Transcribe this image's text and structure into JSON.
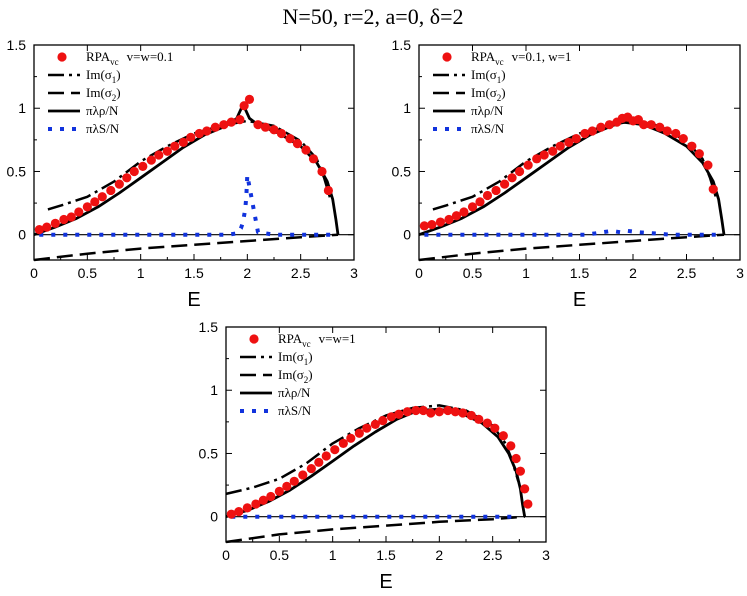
{
  "figure_title": "N=50, r=2, a=0, δ=2",
  "colors": {
    "rpa": "#ee1111",
    "im1": "#000000",
    "im2": "#000000",
    "rho": "#000000",
    "S": "#1133dd"
  },
  "chart_data": [
    {
      "type": "line",
      "panel": "top-left",
      "xlabel": "E",
      "xlim": [
        0,
        3
      ],
      "ylim": [
        -0.2,
        1.5
      ],
      "xticks": [
        "0",
        "0.5",
        "1",
        "1.5",
        "2",
        "2.5",
        "3"
      ],
      "yticks": [
        "0",
        "0.5",
        "1",
        "1.5"
      ],
      "legend": {
        "rpa": "RPA",
        "rpa_sub": "vc",
        "rpa_params": "v=w=0.1",
        "im1": "Im(σ",
        "im1_sub": "1",
        "im2": "Im(σ",
        "im2_sub": "2",
        "rho": "πλρ/N",
        "S": "πλS/N"
      },
      "series": {
        "rpa": {
          "x": [
            0.05,
            0.12,
            0.2,
            0.28,
            0.35,
            0.42,
            0.5,
            0.57,
            0.64,
            0.72,
            0.8,
            0.87,
            0.94,
            1.02,
            1.1,
            1.17,
            1.25,
            1.32,
            1.4,
            1.47,
            1.55,
            1.62,
            1.7,
            1.78,
            1.85,
            1.93,
            1.97,
            2.02,
            2.1,
            2.17,
            2.25,
            2.32,
            2.4,
            2.47,
            2.55,
            2.62,
            2.7,
            2.76
          ],
          "y": [
            0.04,
            0.06,
            0.09,
            0.12,
            0.14,
            0.18,
            0.22,
            0.26,
            0.3,
            0.35,
            0.4,
            0.45,
            0.5,
            0.54,
            0.59,
            0.63,
            0.66,
            0.7,
            0.73,
            0.77,
            0.8,
            0.82,
            0.85,
            0.87,
            0.89,
            0.91,
            1.02,
            1.07,
            0.87,
            0.85,
            0.83,
            0.8,
            0.76,
            0.72,
            0.67,
            0.6,
            0.5,
            0.35
          ]
        },
        "im1": {
          "x": [
            0.13,
            0.25,
            0.5,
            0.75,
            1.0,
            1.25,
            1.5,
            1.75,
            2.0,
            2.25,
            2.5,
            2.65,
            2.72,
            2.78
          ],
          "y": [
            0.2,
            0.23,
            0.3,
            0.42,
            0.58,
            0.7,
            0.8,
            0.86,
            0.9,
            0.86,
            0.74,
            0.6,
            0.45,
            0.28
          ]
        },
        "im2": {
          "x": [
            0.0,
            0.5,
            1.0,
            1.5,
            2.0,
            2.5,
            2.85
          ],
          "y": [
            -0.2,
            -0.15,
            -0.11,
            -0.08,
            -0.05,
            -0.02,
            0.0
          ]
        },
        "rho": {
          "x": [
            0.0,
            0.2,
            0.4,
            0.6,
            0.8,
            1.0,
            1.2,
            1.4,
            1.6,
            1.8,
            1.9,
            1.96,
            2.02,
            2.1,
            2.3,
            2.5,
            2.65,
            2.75,
            2.8,
            2.83,
            2.85
          ],
          "y": [
            0.0,
            0.06,
            0.13,
            0.22,
            0.33,
            0.45,
            0.57,
            0.69,
            0.79,
            0.86,
            0.92,
            1.03,
            0.92,
            0.87,
            0.8,
            0.7,
            0.57,
            0.42,
            0.28,
            0.12,
            0.0
          ]
        },
        "S": {
          "x": [
            0.05,
            0.2,
            0.35,
            0.5,
            0.65,
            0.8,
            0.95,
            1.1,
            1.25,
            1.4,
            1.55,
            1.7,
            1.82,
            1.9,
            1.94,
            1.96,
            1.97,
            1.98,
            1.99,
            2.0,
            2.1,
            2.25,
            2.4,
            2.55,
            2.7,
            2.85
          ],
          "y": [
            0.0,
            0.0,
            0.0,
            0.0,
            0.0,
            0.0,
            0.0,
            0.0,
            0.0,
            0.0,
            0.0,
            0.0,
            0.0,
            0.01,
            0.05,
            0.1,
            0.15,
            0.2,
            0.3,
            0.47,
            0.02,
            0.0,
            0.0,
            0.0,
            0.0,
            0.0
          ]
        }
      }
    },
    {
      "type": "line",
      "panel": "top-right",
      "xlabel": "E",
      "xlim": [
        0,
        3
      ],
      "ylim": [
        -0.2,
        1.5
      ],
      "xticks": [
        "0",
        "0.5",
        "1",
        "1.5",
        "2",
        "2.5",
        "3"
      ],
      "yticks": [
        "0",
        "0.5",
        "1",
        "1.5"
      ],
      "legend": {
        "rpa": "RPA",
        "rpa_sub": "vc",
        "rpa_params": "v=0.1, w=1",
        "im1": "Im(σ",
        "im1_sub": "1",
        "im2": "Im(σ",
        "im2_sub": "2",
        "rho": "πλρ/N",
        "S": "πλS/N"
      },
      "series": {
        "rpa": {
          "x": [
            0.05,
            0.12,
            0.2,
            0.28,
            0.35,
            0.42,
            0.5,
            0.57,
            0.64,
            0.72,
            0.8,
            0.87,
            0.94,
            1.02,
            1.1,
            1.17,
            1.25,
            1.32,
            1.4,
            1.47,
            1.55,
            1.62,
            1.7,
            1.78,
            1.85,
            1.9,
            1.95,
            2.0,
            2.05,
            2.1,
            2.17,
            2.25,
            2.32,
            2.4,
            2.47,
            2.55,
            2.62,
            2.7,
            2.75
          ],
          "y": [
            0.07,
            0.08,
            0.1,
            0.12,
            0.15,
            0.18,
            0.22,
            0.26,
            0.31,
            0.35,
            0.4,
            0.45,
            0.5,
            0.55,
            0.6,
            0.63,
            0.66,
            0.7,
            0.73,
            0.76,
            0.8,
            0.82,
            0.85,
            0.87,
            0.89,
            0.92,
            0.93,
            0.9,
            0.91,
            0.87,
            0.87,
            0.85,
            0.82,
            0.8,
            0.76,
            0.7,
            0.64,
            0.55,
            0.36
          ]
        },
        "im1": {
          "x": [
            0.13,
            0.25,
            0.5,
            0.75,
            1.0,
            1.25,
            1.5,
            1.75,
            2.0,
            2.25,
            2.5,
            2.65,
            2.72,
            2.78
          ],
          "y": [
            0.2,
            0.23,
            0.3,
            0.42,
            0.58,
            0.7,
            0.8,
            0.86,
            0.9,
            0.86,
            0.74,
            0.6,
            0.45,
            0.28
          ]
        },
        "im2": {
          "x": [
            0.0,
            0.5,
            1.0,
            1.5,
            2.0,
            2.5,
            2.85
          ],
          "y": [
            -0.2,
            -0.15,
            -0.11,
            -0.08,
            -0.05,
            -0.02,
            0.0
          ]
        },
        "rho": {
          "x": [
            0.0,
            0.2,
            0.4,
            0.6,
            0.8,
            1.0,
            1.2,
            1.4,
            1.6,
            1.8,
            1.9,
            2.0,
            2.1,
            2.3,
            2.5,
            2.65,
            2.75,
            2.8,
            2.83,
            2.85
          ],
          "y": [
            0.0,
            0.06,
            0.13,
            0.22,
            0.33,
            0.45,
            0.57,
            0.69,
            0.79,
            0.86,
            0.89,
            0.88,
            0.87,
            0.8,
            0.7,
            0.57,
            0.42,
            0.28,
            0.12,
            0.0
          ]
        },
        "S": {
          "x": [
            0.05,
            0.2,
            0.35,
            0.5,
            0.65,
            0.8,
            0.95,
            1.1,
            1.25,
            1.4,
            1.55,
            1.65,
            1.72,
            1.8,
            1.88,
            1.95,
            2.05,
            2.2,
            2.35,
            2.5,
            2.65,
            2.8
          ],
          "y": [
            0.0,
            0.0,
            0.0,
            0.0,
            0.0,
            0.0,
            0.0,
            0.0,
            0.0,
            0.0,
            0.0,
            0.01,
            0.02,
            0.03,
            0.02,
            0.03,
            0.02,
            0.01,
            0.0,
            0.0,
            0.0,
            0.0
          ]
        }
      }
    },
    {
      "type": "line",
      "panel": "bottom",
      "xlabel": "E",
      "xlim": [
        0,
        3
      ],
      "ylim": [
        -0.2,
        1.5
      ],
      "xticks": [
        "0",
        "0.5",
        "1",
        "1.5",
        "2",
        "2.5",
        "3"
      ],
      "yticks": [
        "0",
        "0.5",
        "1",
        "1.5"
      ],
      "legend": {
        "rpa": "RPA",
        "rpa_sub": "vc",
        "rpa_params": "v=w=1",
        "im1": "Im(σ",
        "im1_sub": "1",
        "im2": "Im(σ",
        "im2_sub": "2",
        "rho": "πλρ/N",
        "S": "πλS/N"
      },
      "series": {
        "rpa": {
          "x": [
            0.05,
            0.12,
            0.2,
            0.28,
            0.35,
            0.42,
            0.5,
            0.57,
            0.64,
            0.72,
            0.8,
            0.87,
            0.94,
            1.02,
            1.1,
            1.17,
            1.25,
            1.32,
            1.4,
            1.47,
            1.55,
            1.62,
            1.7,
            1.78,
            1.85,
            1.92,
            2.0,
            2.08,
            2.15,
            2.22,
            2.3,
            2.37,
            2.45,
            2.52,
            2.6,
            2.67,
            2.72,
            2.76,
            2.8,
            2.83
          ],
          "y": [
            0.02,
            0.04,
            0.07,
            0.1,
            0.13,
            0.16,
            0.2,
            0.24,
            0.28,
            0.33,
            0.38,
            0.43,
            0.48,
            0.53,
            0.58,
            0.62,
            0.66,
            0.7,
            0.73,
            0.76,
            0.79,
            0.81,
            0.83,
            0.84,
            0.84,
            0.82,
            0.83,
            0.84,
            0.83,
            0.82,
            0.8,
            0.77,
            0.74,
            0.7,
            0.64,
            0.56,
            0.46,
            0.36,
            0.22,
            0.1
          ]
        },
        "im1": {
          "x": [
            0.0,
            0.25,
            0.5,
            0.75,
            1.0,
            1.25,
            1.5,
            1.75,
            2.0,
            2.25,
            2.5,
            2.62,
            2.68,
            2.74
          ],
          "y": [
            0.18,
            0.23,
            0.3,
            0.42,
            0.58,
            0.7,
            0.8,
            0.86,
            0.88,
            0.84,
            0.72,
            0.58,
            0.45,
            0.28
          ]
        },
        "im2": {
          "x": [
            0.0,
            0.5,
            1.0,
            1.5,
            2.0,
            2.5,
            2.8
          ],
          "y": [
            -0.2,
            -0.14,
            -0.1,
            -0.07,
            -0.04,
            -0.02,
            0.0
          ]
        },
        "rho": {
          "x": [
            0.0,
            0.2,
            0.4,
            0.6,
            0.8,
            1.0,
            1.2,
            1.4,
            1.6,
            1.8,
            2.0,
            2.2,
            2.4,
            2.55,
            2.65,
            2.72,
            2.76,
            2.78,
            2.8
          ],
          "y": [
            0.0,
            0.05,
            0.12,
            0.21,
            0.32,
            0.44,
            0.56,
            0.67,
            0.77,
            0.84,
            0.85,
            0.82,
            0.74,
            0.63,
            0.5,
            0.36,
            0.22,
            0.1,
            0.0
          ]
        },
        "S": {
          "x": [
            0.05,
            0.2,
            0.35,
            0.5,
            0.65,
            0.8,
            0.95,
            1.1,
            1.25,
            1.4,
            1.55,
            1.7,
            1.85,
            2.0,
            2.15,
            2.3,
            2.45,
            2.6,
            2.75
          ],
          "y": [
            0,
            0,
            0,
            0,
            0,
            0,
            0,
            0,
            0,
            0,
            0,
            0,
            0,
            0,
            0,
            0,
            0,
            0,
            0
          ]
        }
      }
    }
  ]
}
